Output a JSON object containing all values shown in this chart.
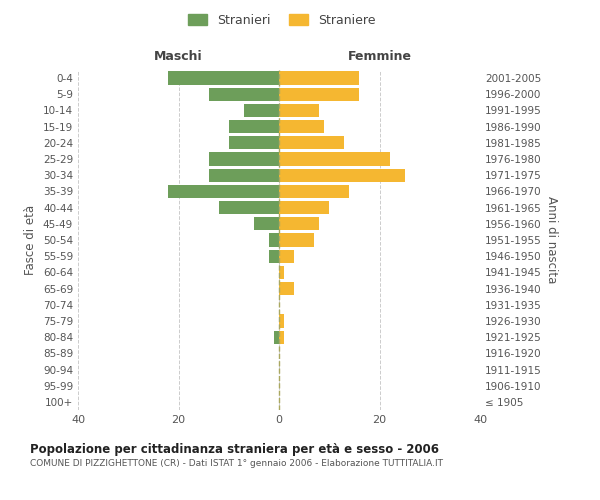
{
  "age_groups": [
    "100+",
    "95-99",
    "90-94",
    "85-89",
    "80-84",
    "75-79",
    "70-74",
    "65-69",
    "60-64",
    "55-59",
    "50-54",
    "45-49",
    "40-44",
    "35-39",
    "30-34",
    "25-29",
    "20-24",
    "15-19",
    "10-14",
    "5-9",
    "0-4"
  ],
  "birth_years": [
    "≤ 1905",
    "1906-1910",
    "1911-1915",
    "1916-1920",
    "1921-1925",
    "1926-1930",
    "1931-1935",
    "1936-1940",
    "1941-1945",
    "1946-1950",
    "1951-1955",
    "1956-1960",
    "1961-1965",
    "1966-1970",
    "1971-1975",
    "1976-1980",
    "1981-1985",
    "1986-1990",
    "1991-1995",
    "1996-2000",
    "2001-2005"
  ],
  "maschi": [
    0,
    0,
    0,
    0,
    1,
    0,
    0,
    0,
    0,
    2,
    2,
    5,
    12,
    22,
    14,
    14,
    10,
    10,
    7,
    14,
    22
  ],
  "femmine": [
    0,
    0,
    0,
    0,
    1,
    1,
    0,
    3,
    1,
    3,
    7,
    8,
    10,
    14,
    25,
    22,
    13,
    9,
    8,
    16,
    16
  ],
  "color_maschi": "#6d9e5a",
  "color_femmine": "#f5b731",
  "title": "Popolazione per cittadinanza straniera per età e sesso - 2006",
  "subtitle": "COMUNE DI PIZZIGHETTONE (CR) - Dati ISTAT 1° gennaio 2006 - Elaborazione TUTTITALIA.IT",
  "label_maschi": "Stranieri",
  "label_femmine": "Straniere",
  "xlabel_left": "Maschi",
  "xlabel_right": "Femmine",
  "ylabel_left": "Fasce di età",
  "ylabel_right": "Anni di nascita",
  "xlim": 40,
  "background_color": "#ffffff",
  "grid_color": "#cccccc"
}
